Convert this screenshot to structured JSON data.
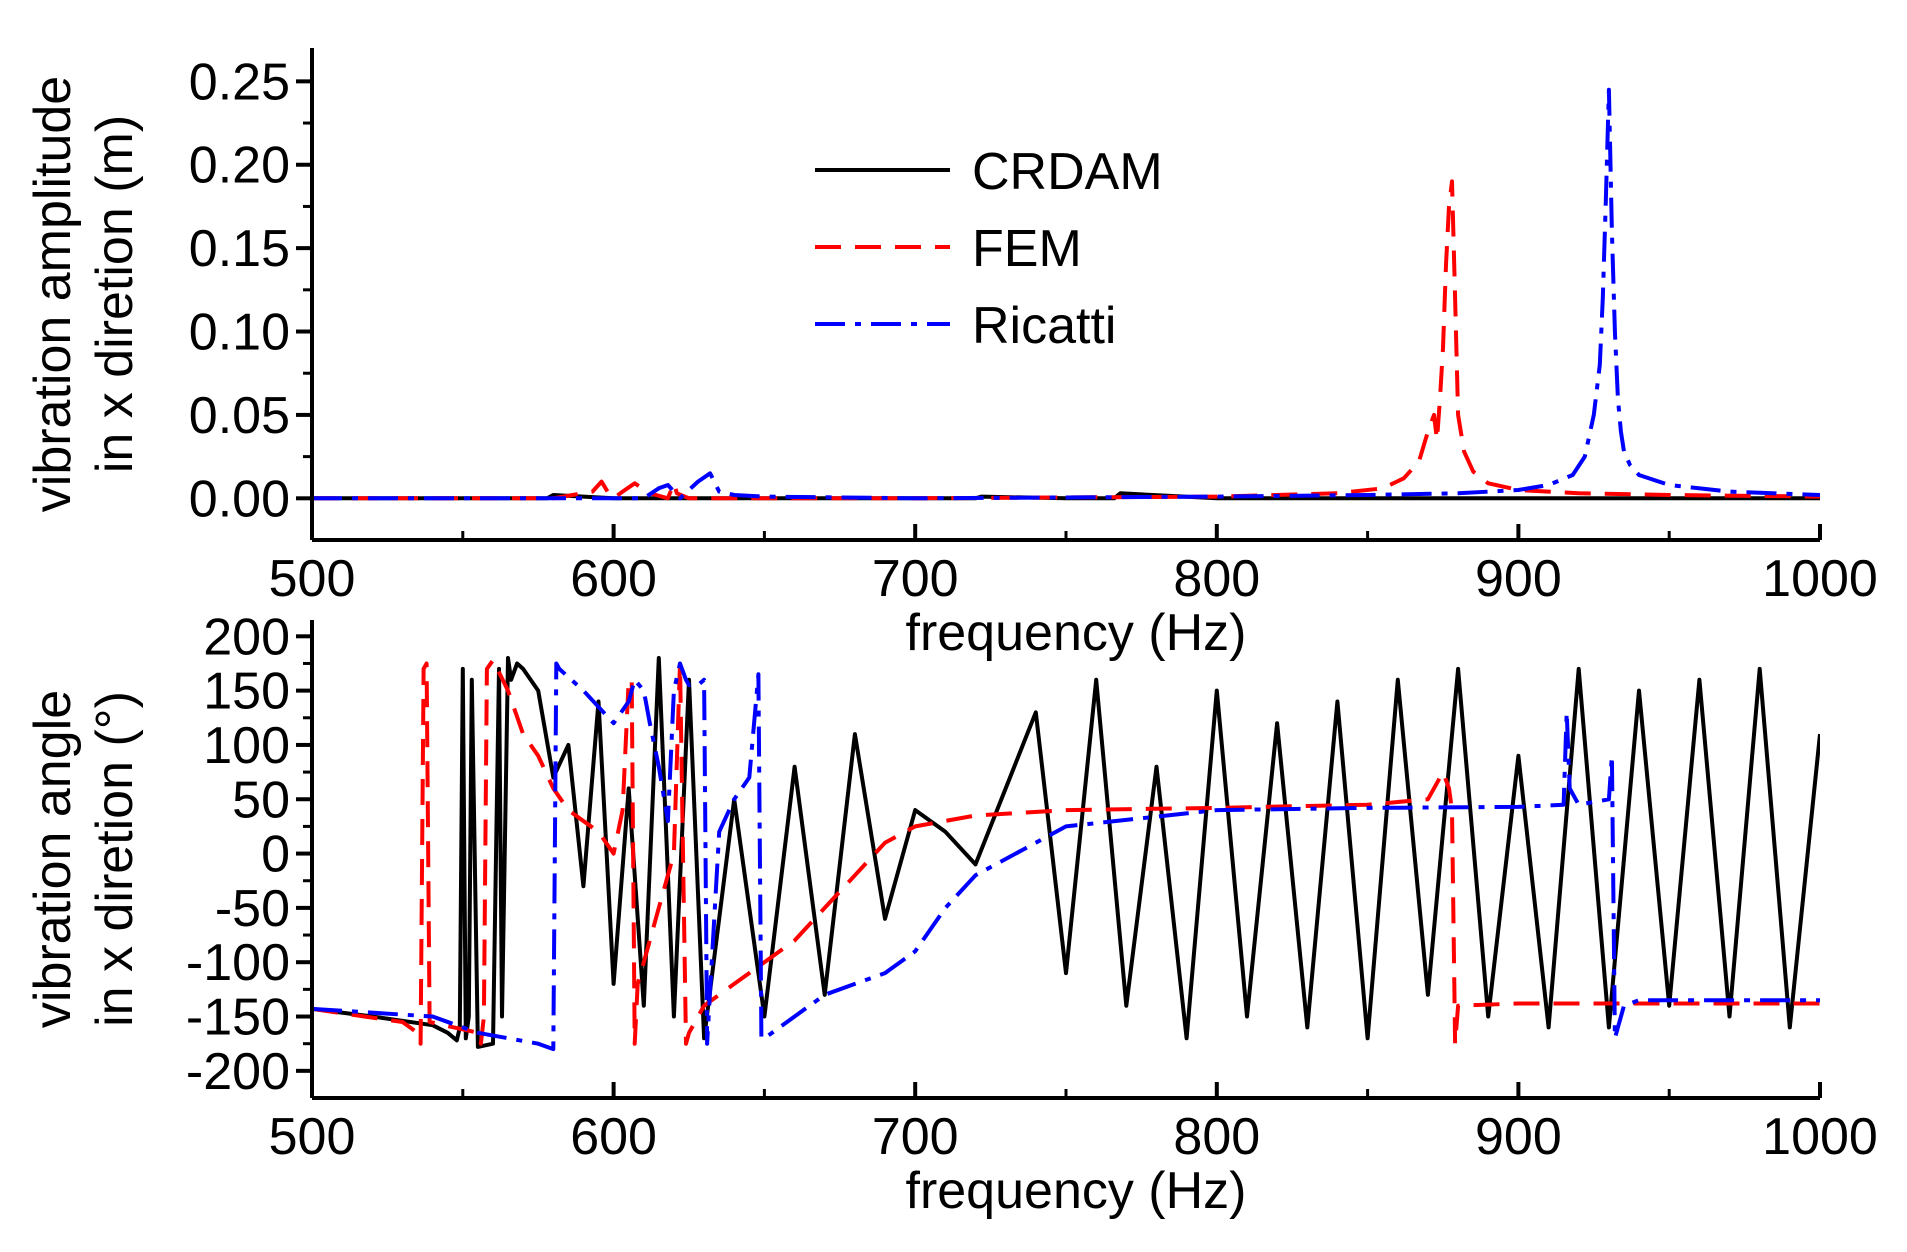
{
  "chart_data": [
    {
      "type": "line",
      "id": "amplitude",
      "xlabel": "frequency (Hz)",
      "ylabel_lines": [
        "vibration amplitude",
        "in x diretion (m)"
      ],
      "xlim": [
        500,
        1000
      ],
      "ylim": [
        -0.025,
        0.27
      ],
      "xticks": [
        500,
        600,
        700,
        800,
        900,
        1000
      ],
      "xtick_labels": [
        "500",
        "600",
        "700",
        "800",
        "900",
        "1000"
      ],
      "yticks": [
        0.0,
        0.05,
        0.1,
        0.15,
        0.2,
        0.25
      ],
      "ytick_labels": [
        "0.00",
        "0.05",
        "0.10",
        "0.15",
        "0.20",
        "0.25"
      ],
      "legend": {
        "placement": "top-center",
        "entries": [
          {
            "label": "CRDAM",
            "color": "#000000",
            "style": "solid"
          },
          {
            "label": "FEM",
            "color": "#ff0000",
            "style": "dashed"
          },
          {
            "label": "Ricatti",
            "color": "#0000ff",
            "style": "dashdot"
          }
        ]
      },
      "series": [
        {
          "name": "CRDAM",
          "color": "#000000",
          "style": "solid",
          "x": [
            500,
            560,
            578,
            580,
            600,
            700,
            720,
            722,
            750,
            760,
            766,
            768,
            800,
            1000
          ],
          "y": [
            0,
            0,
            0,
            0.002,
            0,
            0,
            0,
            0.001,
            0,
            0,
            0,
            0.003,
            0,
            0
          ]
        },
        {
          "name": "FEM",
          "color": "#ff0000",
          "style": "dashed",
          "x": [
            500,
            580,
            593,
            596,
            598,
            600,
            603,
            607,
            612,
            618,
            620,
            621,
            625,
            700,
            800,
            840,
            855,
            862,
            867,
            870,
            872,
            873,
            874,
            875,
            876,
            877,
            878,
            879,
            880,
            882,
            885,
            890,
            900,
            920,
            950,
            1000
          ],
          "y": [
            0,
            0.0,
            0.004,
            0.01,
            0.004,
            0.0,
            0.004,
            0.009,
            0.003,
            0.0,
            0.009,
            0.003,
            0.0,
            0.0,
            0.001,
            0.003,
            0.006,
            0.012,
            0.022,
            0.04,
            0.05,
            0.035,
            0.06,
            0.09,
            0.14,
            0.175,
            0.19,
            0.12,
            0.05,
            0.028,
            0.016,
            0.009,
            0.005,
            0.003,
            0.002,
            0.001
          ]
        },
        {
          "name": "Ricatti",
          "color": "#0000ff",
          "style": "dashdot",
          "x": [
            500,
            610,
            615,
            618,
            620,
            622,
            628,
            632,
            635,
            640,
            650,
            700,
            800,
            850,
            880,
            900,
            910,
            918,
            922,
            925,
            927,
            928,
            929,
            930,
            931,
            932,
            933,
            934,
            935,
            937,
            940,
            950,
            970,
            1000
          ],
          "y": [
            0,
            0.0,
            0.006,
            0.008,
            0.004,
            0.0,
            0.01,
            0.015,
            0.004,
            0.002,
            0.001,
            0.0,
            0.001,
            0.002,
            0.003,
            0.005,
            0.008,
            0.014,
            0.025,
            0.05,
            0.08,
            0.12,
            0.18,
            0.245,
            0.16,
            0.1,
            0.06,
            0.04,
            0.028,
            0.02,
            0.014,
            0.008,
            0.004,
            0.002
          ]
        }
      ]
    },
    {
      "type": "line",
      "id": "angle",
      "xlabel": "frequency (Hz)",
      "ylabel_lines": [
        "vibration angle",
        "in x diretion (°)"
      ],
      "xlim": [
        500,
        1000
      ],
      "ylim": [
        -225,
        215
      ],
      "xticks": [
        500,
        600,
        700,
        800,
        900,
        1000
      ],
      "xtick_labels": [
        "500",
        "600",
        "700",
        "800",
        "900",
        "1000"
      ],
      "yticks": [
        -200,
        -150,
        -100,
        -50,
        0,
        50,
        100,
        150,
        200
      ],
      "ytick_labels": [
        "-200",
        "-150",
        "-100",
        "-50",
        "0",
        "50",
        "100",
        "150",
        "200"
      ],
      "series": [
        {
          "name": "CRDAM",
          "color": "#000000",
          "style": "solid",
          "x": [
            500,
            520,
            540,
            545,
            548,
            549,
            550,
            551,
            552,
            553,
            555,
            560,
            562,
            563,
            565,
            566,
            568,
            570,
            575,
            580,
            585,
            590,
            595,
            600,
            605,
            610,
            615,
            620,
            625,
            630,
            640,
            650,
            660,
            670,
            680,
            690,
            700,
            710,
            720,
            730,
            740,
            750,
            760,
            770,
            780,
            790,
            800,
            810,
            820,
            830,
            840,
            850,
            860,
            870,
            880,
            890,
            900,
            910,
            920,
            930,
            940,
            950,
            960,
            970,
            980,
            990,
            1000
          ],
          "y": [
            -143,
            -150,
            -158,
            -165,
            -172,
            -160,
            170,
            -170,
            -150,
            160,
            -178,
            -175,
            170,
            -150,
            180,
            160,
            175,
            170,
            150,
            70,
            100,
            -30,
            140,
            -120,
            60,
            -140,
            180,
            -150,
            160,
            -170,
            50,
            -150,
            80,
            -130,
            110,
            -60,
            40,
            20,
            -10,
            60,
            130,
            -110,
            160,
            -140,
            80,
            -170,
            150,
            -150,
            120,
            -160,
            140,
            -170,
            160,
            -130,
            170,
            -150,
            90,
            -160,
            170,
            -160,
            150,
            -140,
            160,
            -150,
            170,
            -160,
            110
          ]
        },
        {
          "name": "FEM",
          "color": "#ff0000",
          "style": "dashed",
          "x": [
            500,
            530,
            535,
            536,
            537,
            538,
            539,
            555,
            556,
            557,
            558,
            560,
            565,
            570,
            575,
            580,
            585,
            590,
            595,
            600,
            603,
            605,
            606,
            607,
            608,
            610,
            615,
            620,
            622,
            624,
            625,
            630,
            640,
            650,
            660,
            670,
            680,
            690,
            700,
            720,
            750,
            800,
            850,
            870,
            875,
            877,
            878,
            879,
            880,
            900,
            950,
            1000
          ],
          "y": [
            -143,
            -155,
            -165,
            -175,
            170,
            175,
            -155,
            -165,
            -175,
            -150,
            170,
            178,
            150,
            110,
            90,
            60,
            40,
            30,
            20,
            0,
            40,
            160,
            160,
            -175,
            -120,
            -100,
            -50,
            0,
            175,
            -175,
            -165,
            -140,
            -120,
            -100,
            -80,
            -50,
            -20,
            10,
            25,
            35,
            40,
            42,
            45,
            50,
            75,
            60,
            40,
            -175,
            -140,
            -138,
            -138,
            -138
          ]
        },
        {
          "name": "Ricatti",
          "color": "#0000ff",
          "style": "dashdot",
          "x": [
            500,
            540,
            550,
            555,
            575,
            580,
            581,
            582,
            590,
            600,
            605,
            607,
            610,
            612,
            615,
            618,
            620,
            622,
            624,
            625,
            626,
            628,
            630,
            631,
            635,
            640,
            645,
            648,
            649,
            650,
            660,
            670,
            680,
            690,
            700,
            710,
            720,
            750,
            800,
            850,
            900,
            915,
            916,
            917,
            920,
            930,
            931,
            932,
            933,
            935,
            940,
            1000
          ],
          "y": [
            -143,
            -150,
            -160,
            -165,
            -175,
            -180,
            175,
            170,
            150,
            120,
            140,
            160,
            150,
            120,
            80,
            30,
            150,
            175,
            160,
            155,
            155,
            155,
            160,
            -175,
            20,
            50,
            70,
            165,
            -170,
            -170,
            -150,
            -130,
            -120,
            -110,
            -90,
            -50,
            -20,
            25,
            40,
            42,
            43,
            45,
            130,
            60,
            45,
            50,
            90,
            -170,
            -160,
            -140,
            -135,
            -135
          ]
        }
      ]
    }
  ]
}
